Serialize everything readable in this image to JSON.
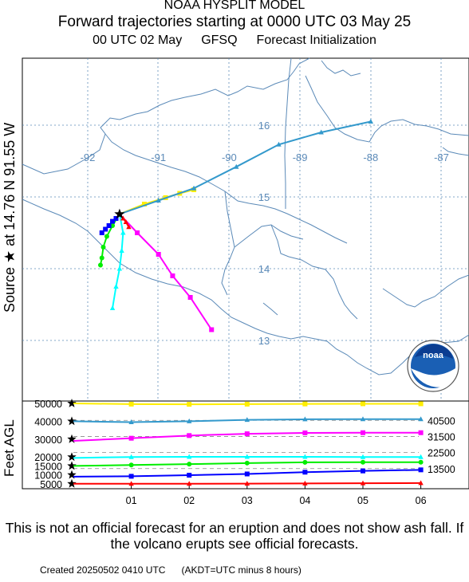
{
  "header": {
    "model": "NOAA HYSPLIT MODEL",
    "title": "Forward trajectories starting at 0000 UTC 03 May 25",
    "init_time": "00 UTC 02 May",
    "init_model": "GFSQ",
    "init_label": "Forecast Initialization"
  },
  "source_label": "Source ★ at   14.76 N   91.55 W",
  "map": {
    "lon_labels": [
      "-92",
      "-91",
      "-90",
      "-89",
      "-88",
      "-87"
    ],
    "lat_labels": [
      "16",
      "15",
      "14",
      "13"
    ],
    "source": {
      "lat": 14.76,
      "lon": -91.55
    },
    "trajectories": [
      {
        "level": 50000,
        "color": "#ffee00",
        "points": [
          [
            -91.55,
            14.76
          ],
          [
            -91.2,
            14.9
          ],
          [
            -90.9,
            14.99
          ],
          [
            -90.7,
            15.05
          ],
          [
            -90.5,
            15.1
          ]
        ]
      },
      {
        "level": 40000,
        "color": "#3399cc",
        "points": [
          [
            -91.55,
            14.76
          ],
          [
            -91.0,
            14.95
          ],
          [
            -90.5,
            15.12
          ],
          [
            -89.9,
            15.42
          ],
          [
            -89.3,
            15.73
          ],
          [
            -88.7,
            15.9
          ],
          [
            -88.0,
            16.05
          ]
        ]
      },
      {
        "level": 30000,
        "color": "#ff00ff",
        "points": [
          [
            -91.55,
            14.76
          ],
          [
            -91.3,
            14.5
          ],
          [
            -91.0,
            14.2
          ],
          [
            -90.8,
            13.9
          ],
          [
            -90.55,
            13.6
          ],
          [
            -90.25,
            13.15
          ]
        ]
      },
      {
        "level": 20000,
        "color": "#00ffff",
        "points": [
          [
            -91.55,
            14.76
          ],
          [
            -91.5,
            14.5
          ],
          [
            -91.52,
            14.25
          ],
          [
            -91.55,
            14.0
          ],
          [
            -91.6,
            13.75
          ],
          [
            -91.65,
            13.45
          ]
        ]
      },
      {
        "level": 15000,
        "color": "#00ee00",
        "points": [
          [
            -91.55,
            14.76
          ],
          [
            -91.65,
            14.6
          ],
          [
            -91.73,
            14.45
          ],
          [
            -91.78,
            14.3
          ],
          [
            -91.8,
            14.15
          ],
          [
            -91.82,
            14.05
          ]
        ]
      },
      {
        "level": 10000,
        "color": "#0000ff",
        "points": [
          [
            -91.55,
            14.76
          ],
          [
            -91.6,
            14.7
          ],
          [
            -91.65,
            14.66
          ],
          [
            -91.7,
            14.6
          ],
          [
            -91.75,
            14.55
          ],
          [
            -91.8,
            14.5
          ]
        ]
      },
      {
        "level": 5000,
        "color": "#ff0000",
        "points": [
          [
            -91.55,
            14.76
          ],
          [
            -91.5,
            14.7
          ],
          [
            -91.46,
            14.65
          ],
          [
            -91.42,
            14.58
          ]
        ]
      }
    ]
  },
  "noaa_logo": "noaa",
  "height_panel": {
    "ylabel": "Feet AGL",
    "left_ticks": [
      "50000",
      "40000",
      "30000",
      "20000",
      "15000",
      "10000",
      "5000"
    ],
    "right_ticks": [
      "40500",
      "31500",
      "22500",
      "13500"
    ],
    "x_labels": [
      "01",
      "02",
      "03",
      "04",
      "05",
      "06"
    ],
    "series": [
      {
        "color": "#ffee00",
        "heights": [
          50000,
          49600,
          49500,
          49600,
          49700,
          49800,
          49800
        ]
      },
      {
        "color": "#3399cc",
        "heights": [
          40000,
          39500,
          40000,
          40800,
          41100,
          41200,
          41200
        ]
      },
      {
        "color": "#ff00ff",
        "heights": [
          29000,
          30500,
          32000,
          33000,
          33500,
          33600,
          33600
        ]
      },
      {
        "color": "#00ffff",
        "heights": [
          19500,
          20000,
          20100,
          20100,
          20100,
          20000,
          20000
        ]
      },
      {
        "color": "#00ee00",
        "heights": [
          15000,
          15500,
          16000,
          16600,
          17000,
          17100,
          17100
        ]
      },
      {
        "color": "#0000ff",
        "heights": [
          9000,
          9200,
          9800,
          10500,
          11500,
          12200,
          12800
        ]
      },
      {
        "color": "#ff0000",
        "heights": [
          5000,
          5000,
          5000,
          5100,
          5200,
          5300,
          5400
        ]
      }
    ]
  },
  "disclaimer": "This is not an official forecast for an eruption and does not show ash fall. If the volcano erupts see official forecasts.",
  "footer": {
    "created": "Created 20250502 0410 UTC",
    "note": "(AKDT=UTC minus 8 hours)"
  }
}
